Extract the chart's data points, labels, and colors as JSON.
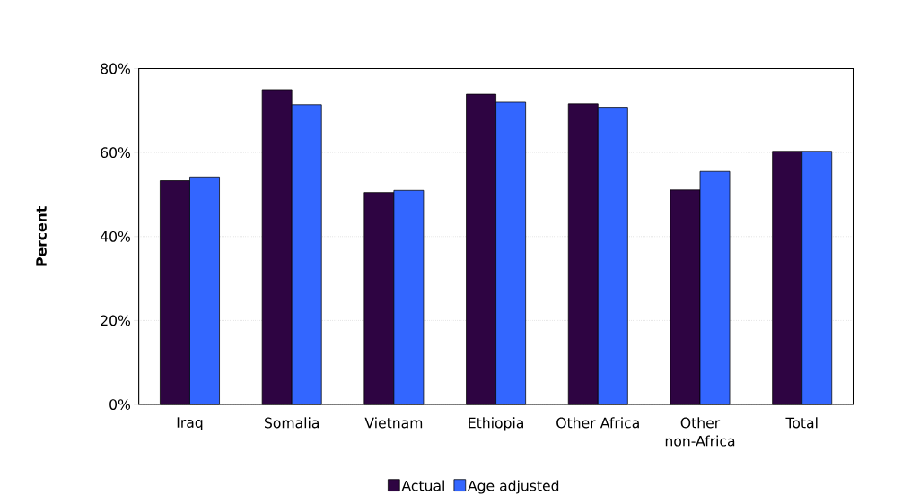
{
  "chart_data": {
    "type": "bar",
    "ylabel": "Percent",
    "categories": [
      "Iraq",
      "Somalia",
      "Vietnam",
      "Ethiopia",
      "Other Africa",
      "Other non-Africa",
      "Total"
    ],
    "series": [
      {
        "name": "Actual",
        "color": "#2e0442",
        "values": [
          53.3,
          75.0,
          50.5,
          73.9,
          71.6,
          51.1,
          60.3
        ]
      },
      {
        "name": "Age adjusted",
        "color": "#3366ff",
        "values": [
          54.2,
          71.4,
          51.0,
          72.0,
          70.8,
          55.5,
          60.3
        ]
      }
    ],
    "ylim": [
      0,
      80
    ],
    "yticks": [
      {
        "value": 0,
        "label": "0%"
      },
      {
        "value": 20,
        "label": "20%"
      },
      {
        "value": 40,
        "label": "40%"
      },
      {
        "value": 60,
        "label": "60%"
      },
      {
        "value": 80,
        "label": "80%"
      }
    ],
    "grid": "y",
    "legend": "bottom"
  }
}
